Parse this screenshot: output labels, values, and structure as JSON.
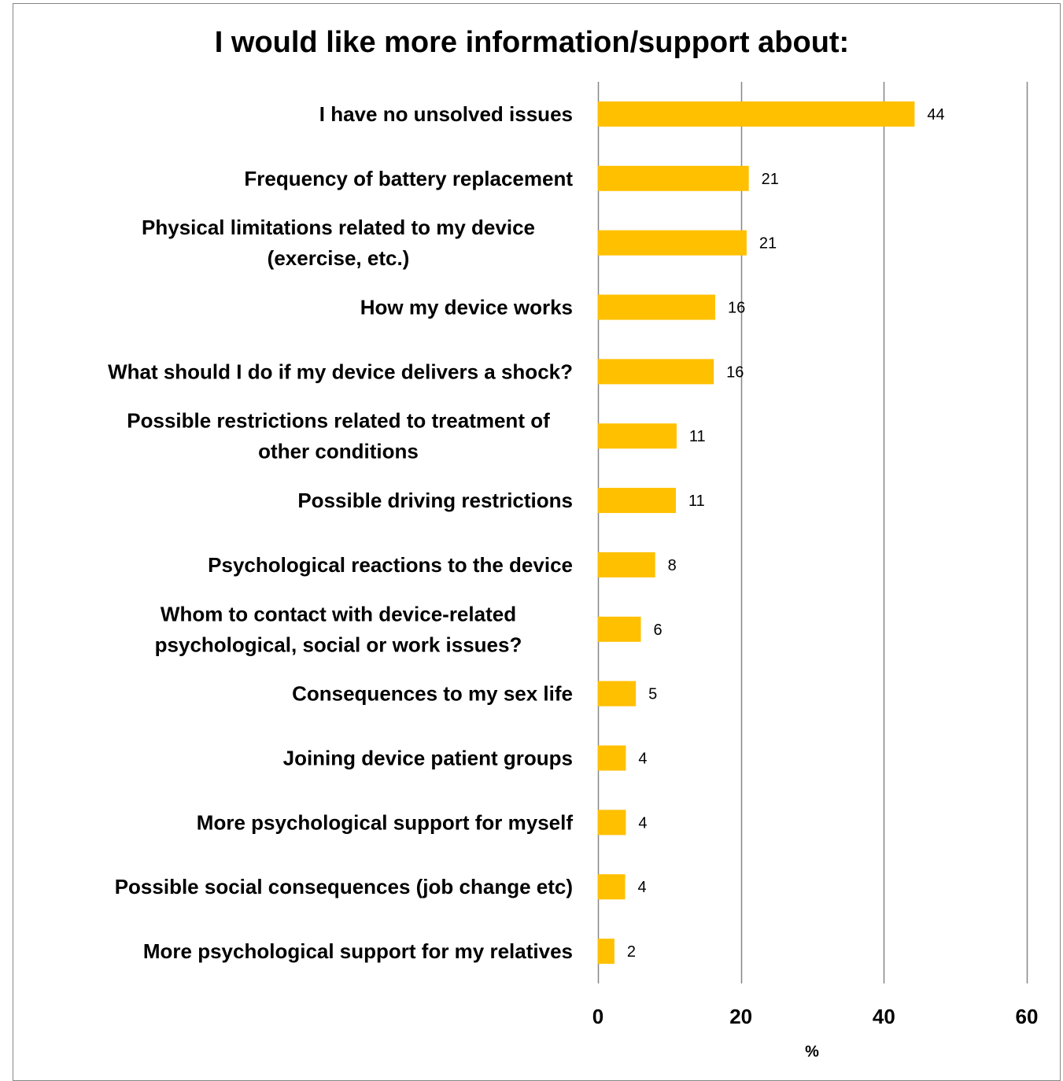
{
  "chart_data": {
    "type": "bar",
    "orientation": "horizontal",
    "title": "I would like more information/support about:",
    "xlabel": "%",
    "ylabel": "",
    "xlim": [
      0,
      60
    ],
    "ticks": [
      0,
      20,
      40,
      60
    ],
    "grid": true,
    "legend": "none",
    "bar_color": "#FFC000",
    "categories": [
      [
        "I have no unsolved issues"
      ],
      [
        "Frequency of battery replacement"
      ],
      [
        "Physical limitations related to my device",
        "(exercise, etc.)"
      ],
      [
        "How my device works"
      ],
      [
        "What should I do if my device delivers a shock?"
      ],
      [
        "Possible restrictions related to treatment of",
        "other conditions"
      ],
      [
        "Possible driving restrictions"
      ],
      [
        "Psychological reactions to the device"
      ],
      [
        "Whom to contact with device-related",
        "psychological, social or work issues?"
      ],
      [
        "Consequences to my sex life"
      ],
      [
        "Joining device patient groups"
      ],
      [
        "More psychological support for myself"
      ],
      [
        "Possible social consequences (job change etc)"
      ],
      [
        "More psychological support for my relatives"
      ]
    ],
    "values": [
      44.3,
      21.1,
      20.8,
      16.4,
      16.2,
      11.0,
      10.9,
      8.0,
      6.0,
      5.3,
      3.9,
      3.9,
      3.8,
      2.3
    ],
    "data_labels": [
      "44",
      "21",
      "21",
      "16",
      "16",
      "11",
      "11",
      "8",
      "6",
      "5",
      "4",
      "4",
      "4",
      "2"
    ]
  }
}
